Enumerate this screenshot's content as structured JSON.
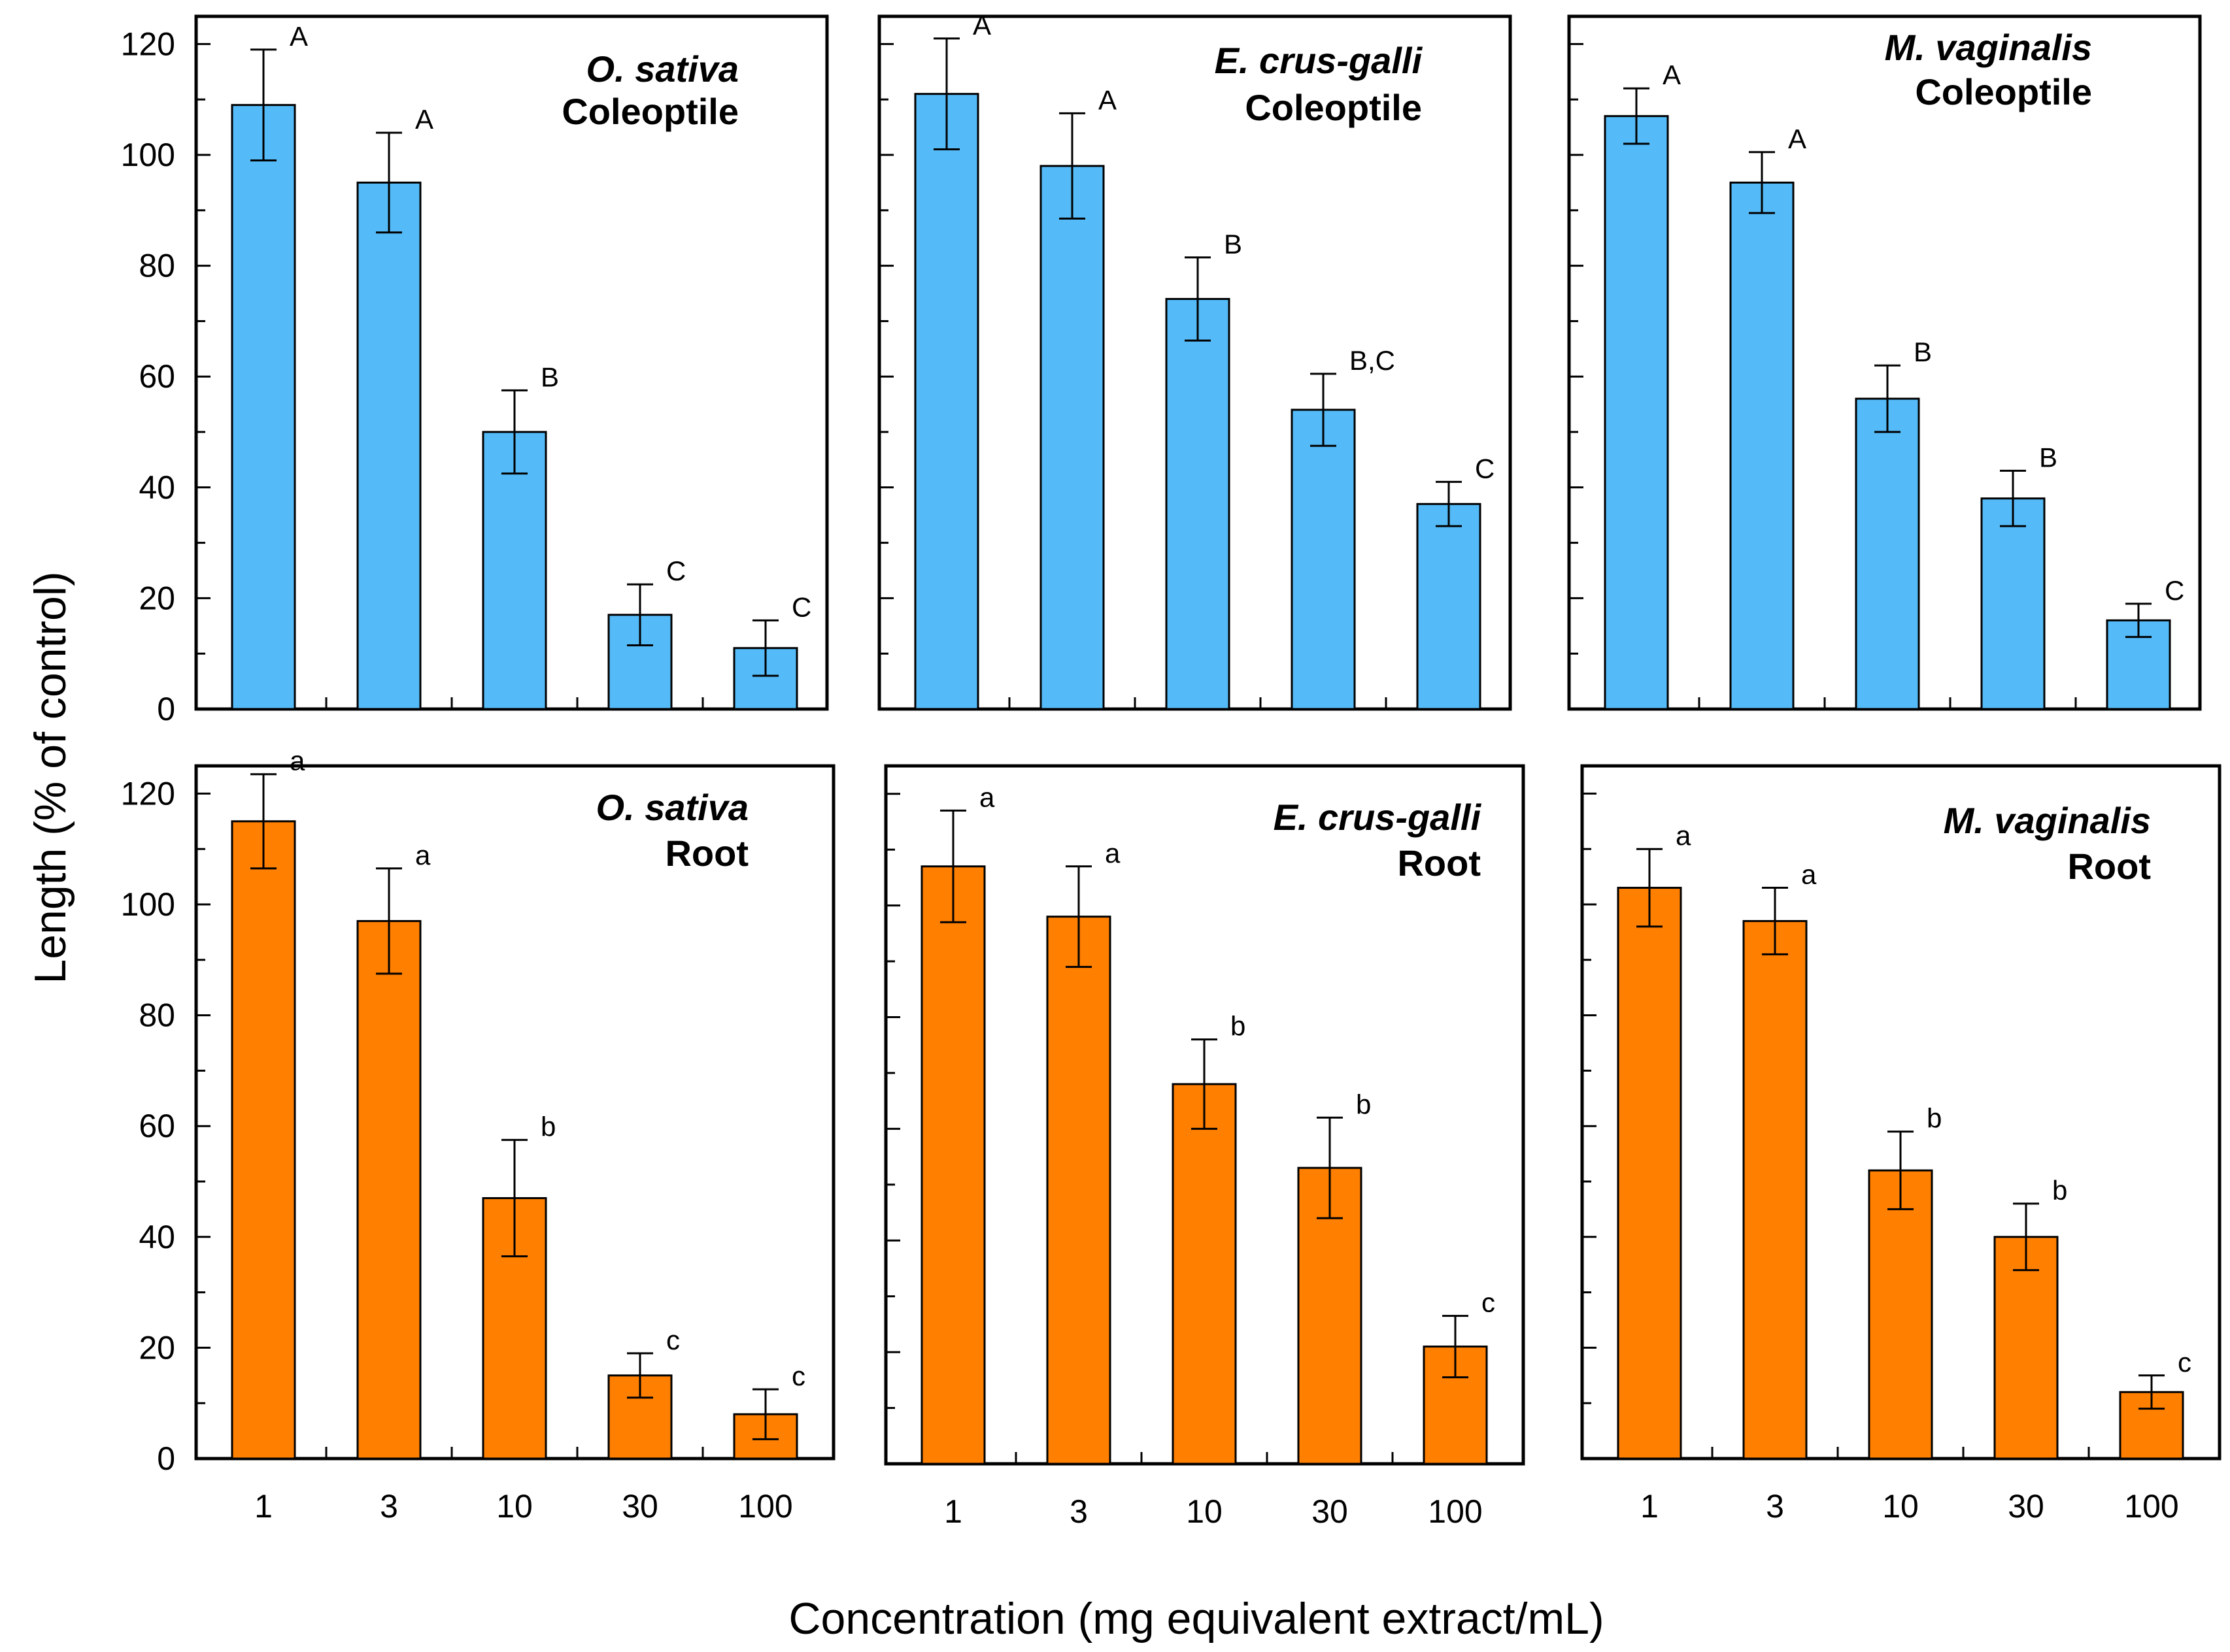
{
  "figure": {
    "ylabel": "Length  (% of control)",
    "xlabel": "Concentration (mg equivalent extract/mL)"
  },
  "colors": {
    "coleoptile": "#55bbf8",
    "root": "#ff7f00",
    "frame": "#000000"
  },
  "chart_data": [
    {
      "type": "bar",
      "species": "O. sativa",
      "organ": "Coleoptile",
      "categories": [
        "1",
        "3",
        "10",
        "30",
        "100"
      ],
      "values": [
        109,
        95,
        50,
        17,
        11
      ],
      "errors": [
        10,
        9,
        7.5,
        5.5,
        5
      ],
      "significance": [
        "A",
        "A",
        "B",
        "C",
        "C"
      ],
      "yticks": [
        "0",
        "20",
        "40",
        "60",
        "80",
        "100",
        "120"
      ],
      "ylim": [
        0,
        120
      ]
    },
    {
      "type": "bar",
      "species": "E. crus-galli",
      "organ": "Coleoptile",
      "categories": [
        "1",
        "3",
        "10",
        "30",
        "100"
      ],
      "values": [
        111,
        98,
        74,
        54,
        37
      ],
      "errors": [
        10,
        9.5,
        7.5,
        6.5,
        4
      ],
      "significance": [
        "A",
        "A",
        "B",
        "B,C",
        "C"
      ],
      "ylim": [
        0,
        120
      ]
    },
    {
      "type": "bar",
      "species": "M. vaginalis",
      "organ": "Coleoptile",
      "categories": [
        "1",
        "3",
        "10",
        "30",
        "100"
      ],
      "values": [
        107,
        95,
        56,
        38,
        16
      ],
      "errors": [
        5,
        5.5,
        6,
        5,
        3
      ],
      "significance": [
        "A",
        "A",
        "B",
        "B",
        "C"
      ],
      "ylim": [
        0,
        120
      ]
    },
    {
      "type": "bar",
      "species": "O. sativa",
      "organ": "Root",
      "categories": [
        "1",
        "3",
        "10",
        "30",
        "100"
      ],
      "values": [
        115,
        97,
        47,
        15,
        8
      ],
      "errors": [
        8.5,
        9.5,
        10.5,
        4,
        4.5
      ],
      "significance": [
        "a",
        "a",
        "b",
        "c",
        "c"
      ],
      "yticks": [
        "0",
        "20",
        "40",
        "60",
        "80",
        "100",
        "120"
      ],
      "xticks": [
        "1",
        "3",
        "10",
        "30",
        "100"
      ],
      "ylim": [
        0,
        120
      ]
    },
    {
      "type": "bar",
      "species": "E. crus-galli",
      "organ": "Root",
      "categories": [
        "1",
        "3",
        "10",
        "30",
        "100"
      ],
      "values": [
        107,
        98,
        68,
        53,
        21
      ],
      "errors": [
        10,
        9,
        8,
        9,
        5.5
      ],
      "significance": [
        "a",
        "a",
        "b",
        "b",
        "c"
      ],
      "xticks": [
        "1",
        "3",
        "10",
        "30",
        "100"
      ],
      "ylim": [
        0,
        120
      ]
    },
    {
      "type": "bar",
      "species": "M. vaginalis",
      "organ": "Root",
      "categories": [
        "1",
        "3",
        "10",
        "30",
        "100"
      ],
      "values": [
        103,
        97,
        52,
        40,
        12
      ],
      "errors": [
        7,
        6,
        7,
        6,
        3
      ],
      "significance": [
        "a",
        "a",
        "b",
        "b",
        "c"
      ],
      "xticks": [
        "1",
        "3",
        "10",
        "30",
        "100"
      ],
      "ylim": [
        0,
        120
      ]
    }
  ]
}
